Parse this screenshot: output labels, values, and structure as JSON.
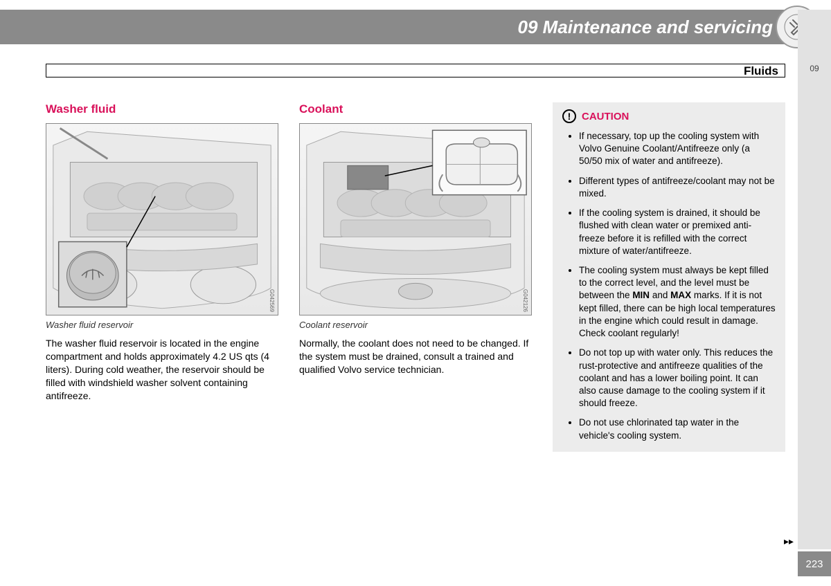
{
  "header": {
    "chapter": "09 Maintenance and servicing"
  },
  "sideTab": {
    "label": "09"
  },
  "section": {
    "label": "Fluids"
  },
  "col1": {
    "heading": "Washer fluid",
    "figId": "G042569",
    "caption": "Washer fluid reservoir",
    "body": "The washer fluid reservoir is located in the engine compartment and holds approximately 4.2 US qts (4 liters). During cold weather, the reservoir should be filled with windshield washer solvent containing antifreeze."
  },
  "col2": {
    "heading": "Coolant",
    "figId": "G042126",
    "caption": "Coolant reservoir",
    "body": "Normally, the coolant does not need to be changed. If the system must be drained, consult a trained and qualified Volvo service technician."
  },
  "caution": {
    "title": "CAUTION",
    "items": [
      "If necessary, top up the cooling system with Volvo Genuine Coolant/Antifreeze only (a 50/50 mix of water and antifreeze).",
      "Different types of antifreeze/coolant may not be mixed.",
      "If the cooling system is drained, it should be flushed with clean water or premixed anti-freeze before it is refilled with the correct mixture of water/antifreeze.",
      "The cooling system must always be kept filled to the correct level, and the level must be between the <b>MIN</b> and <b>MAX</b> marks. If it is not kept filled, there can be high local temperatures in the engine which could result in damage. Check coolant regularly!",
      "Do not top up with water only. This reduces the rust-protective and antifreeze qualities of the coolant and has a lower boiling point. It can also cause damage to the cooling system if it should freeze.",
      "Do not use chlorinated tap water in the vehicle's cooling system."
    ]
  },
  "pageNumber": "223",
  "continueGlyph": "▸▸"
}
